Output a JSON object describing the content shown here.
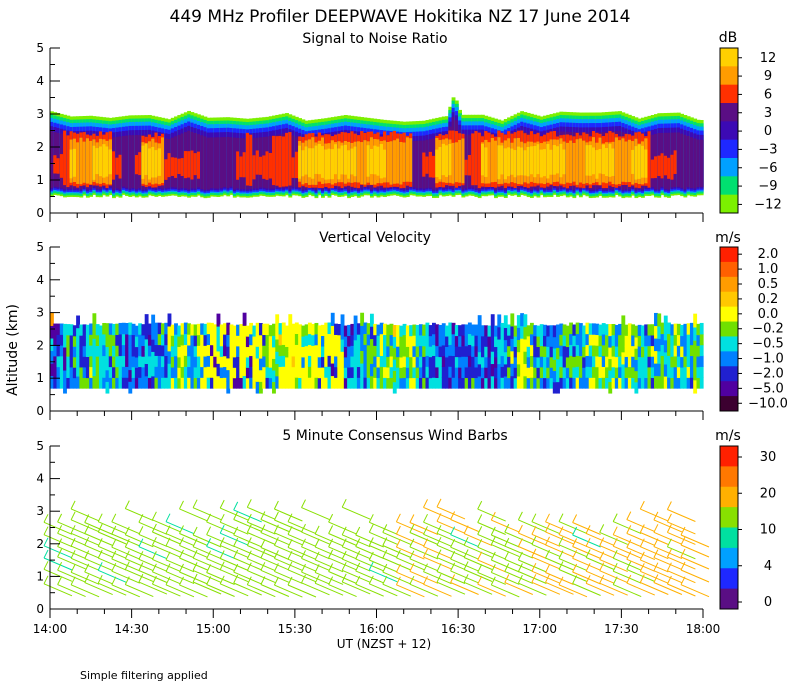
{
  "title": "449 MHz Profiler DEEPWAVE Hokitika NZ 17 June 2014",
  "ylabel": "Altitude (km)",
  "xlabel": "UT  (NZST + 12)",
  "footnote": "Simple filtering applied",
  "x_ticks": [
    "14:00",
    "14:30",
    "15:00",
    "15:30",
    "16:00",
    "16:30",
    "17:00",
    "17:30",
    "18:00"
  ],
  "y_ticks": [
    "0",
    "1",
    "2",
    "3",
    "4",
    "5"
  ],
  "chart_data": [
    {
      "type": "heatmap",
      "title": "Signal to Noise Ratio",
      "xlim": [
        "14:00",
        "18:00"
      ],
      "ylim": [
        0,
        5
      ],
      "colorbar": {
        "unit": "dB",
        "labels": [
          "12",
          "9",
          "6",
          "3",
          "0",
          "−3",
          "−6",
          "−9",
          "−12"
        ],
        "colors": [
          "#ffd000",
          "#ff9c00",
          "#ff3000",
          "#5a0e84",
          "#3c0ab4",
          "#1e28ff",
          "#00a0ff",
          "#00e070",
          "#7cf000"
        ]
      },
      "echo_layer_km": [
        0.5,
        3.0
      ],
      "peak_tops": [
        {
          "time": "16:28",
          "top_km": 3.6
        }
      ]
    },
    {
      "type": "heatmap",
      "title": "Vertical Velocity",
      "xlim": [
        "14:00",
        "18:00"
      ],
      "ylim": [
        0,
        5
      ],
      "colorbar": {
        "unit": "m/s",
        "labels": [
          "2.0",
          "1.0",
          "0.5",
          "0.2",
          "0.0",
          "−0.2",
          "−0.5",
          "−1.0",
          "−2.0",
          "−5.0",
          "−10.0"
        ],
        "colors": [
          "#ff2000",
          "#ff6000",
          "#ff9c00",
          "#ffc800",
          "#ffff00",
          "#70e000",
          "#00e0e0",
          "#0080ff",
          "#2020d0",
          "#5000a0",
          "#3c0030"
        ]
      },
      "data_layer_km": [
        0.7,
        2.6
      ]
    },
    {
      "type": "scatter",
      "title": "5 Minute Consensus Wind Barbs",
      "xlim": [
        "14:00",
        "18:00"
      ],
      "ylim": [
        0,
        5
      ],
      "colorbar": {
        "unit": "m/s",
        "labels": [
          "30",
          "20",
          "10",
          "4",
          "0"
        ],
        "colors": [
          "#ff2000",
          "#ff7800",
          "#ffb000",
          "#88e000",
          "#00e0a0",
          "#00a0ff",
          "#1e28ff",
          "#5a0e84"
        ]
      },
      "barb_layer_km": [
        0.6,
        2.9
      ]
    }
  ]
}
